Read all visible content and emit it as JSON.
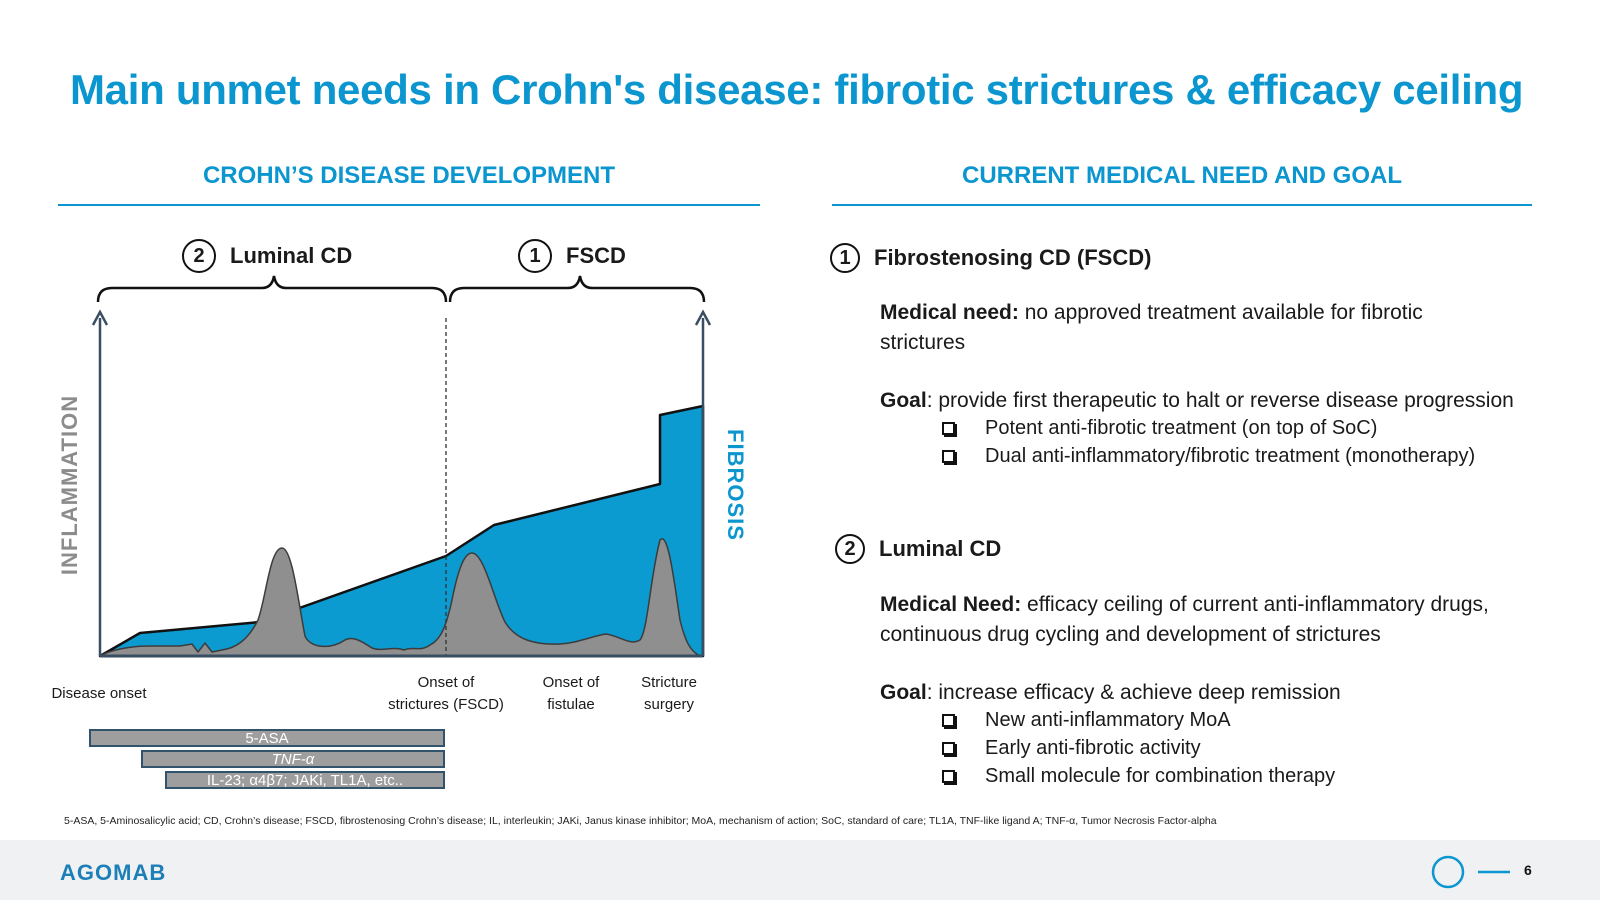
{
  "title": "Main unmet needs in Crohn's disease: fibrotic strictures & efficacy ceiling",
  "left": {
    "heading": "CROHN’S DISEASE DEVELOPMENT",
    "phase_luminal": {
      "num": "2",
      "label": "Luminal CD"
    },
    "phase_fscd": {
      "num": "1",
      "label": "FSCD"
    },
    "y_left_label": "INFLAMMATION",
    "y_right_label": "FIBROSIS",
    "x_labels": {
      "onset": "Disease onset",
      "strictures_1": "Onset of",
      "strictures_2": "strictures (FSCD)",
      "fistulae_1": "Onset of",
      "fistulae_2": "fistulae",
      "surgery_1": "Stricture",
      "surgery_2": "surgery"
    },
    "drugs": [
      "5-ASA",
      "TNF-α",
      "IL-23; α4β7; JAKi, TL1A, etc.."
    ],
    "colors": {
      "fibrosis": "#0b9bd1",
      "inflammation": "#8f8f8f",
      "axis": "#3a4e63"
    }
  },
  "right": {
    "heading": "CURRENT MEDICAL NEED AND GOAL",
    "fscd": {
      "num": "1",
      "title": "Fibrostenosing CD (FSCD)",
      "need_label": "Medical need:",
      "need_text": " no approved treatment available for fibrotic strictures",
      "goal_label": "Goal",
      "goal_text": ": provide first therapeutic to halt or reverse disease progression",
      "bullets": [
        "Potent anti-fibrotic treatment (on top of SoC)",
        "Dual anti-inflammatory/fibrotic treatment (monotherapy)"
      ]
    },
    "luminal": {
      "num": "2",
      "title": "Luminal CD",
      "need_label": "Medical Need:",
      "need_text": " efficacy ceiling of current anti-inflammatory drugs, continuous drug cycling and development of strictures",
      "goal_label": "Goal",
      "goal_text": ": increase efficacy & achieve deep remission",
      "bullets": [
        "New anti-inflammatory MoA",
        "Early anti-fibrotic activity",
        "Small molecule for combination therapy"
      ]
    }
  },
  "footnote": "5-ASA, 5-Aminosalicylic acid; CD, Crohn’s disease; FSCD, fibrostenosing Crohn’s disease; IL, interleukin; JAKi, Janus kinase inhibitor; MoA, mechanism of action; SoC, standard of care; TL1A, TNF-like ligand A; TNF-α, Tumor Necrosis Factor-alpha",
  "footer": {
    "logo": "AGOMAB",
    "page": "6",
    "accent": "#0b96cf"
  }
}
